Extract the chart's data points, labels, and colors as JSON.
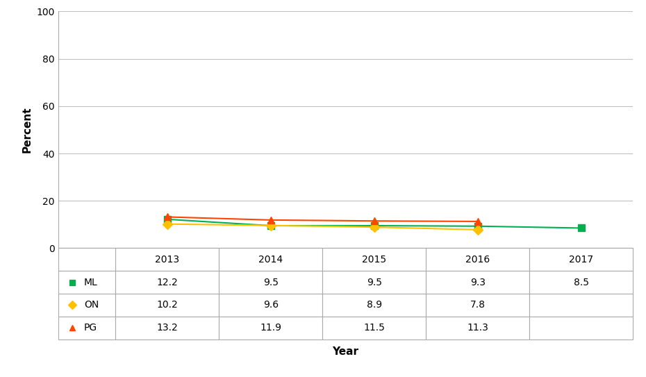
{
  "series": [
    {
      "label": "ML",
      "years": [
        2013,
        2014,
        2015,
        2016,
        2017
      ],
      "values": [
        12.2,
        9.5,
        9.5,
        9.3,
        8.5
      ],
      "color": "#00b050",
      "marker": "s"
    },
    {
      "label": "ON",
      "years": [
        2013,
        2014,
        2015,
        2016
      ],
      "values": [
        10.2,
        9.6,
        8.9,
        7.8
      ],
      "color": "#ffc000",
      "marker": "D"
    },
    {
      "label": "PG",
      "years": [
        2013,
        2014,
        2015,
        2016
      ],
      "values": [
        13.2,
        11.9,
        11.5,
        11.3
      ],
      "color": "#ff4500",
      "marker": "^"
    }
  ],
  "all_years": [
    2013,
    2014,
    2015,
    2016,
    2017
  ],
  "ylabel": "Percent",
  "xlabel": "Year",
  "ylim": [
    0,
    100
  ],
  "yticks": [
    0,
    20,
    40,
    60,
    80,
    100
  ],
  "table_years": [
    "2013",
    "2014",
    "2015",
    "2016",
    "2017"
  ],
  "table_data": [
    [
      "ML",
      "12.2",
      "9.5",
      "9.5",
      "9.3",
      "8.5"
    ],
    [
      "ON",
      "10.2",
      "9.6",
      "8.9",
      "7.8",
      ""
    ],
    [
      "PG",
      "13.2",
      "11.9",
      "11.5",
      "11.3",
      ""
    ]
  ],
  "bg_color": "#ffffff",
  "grid_color": "#c0c0c0",
  "line_width": 1.5,
  "marker_size": 7
}
